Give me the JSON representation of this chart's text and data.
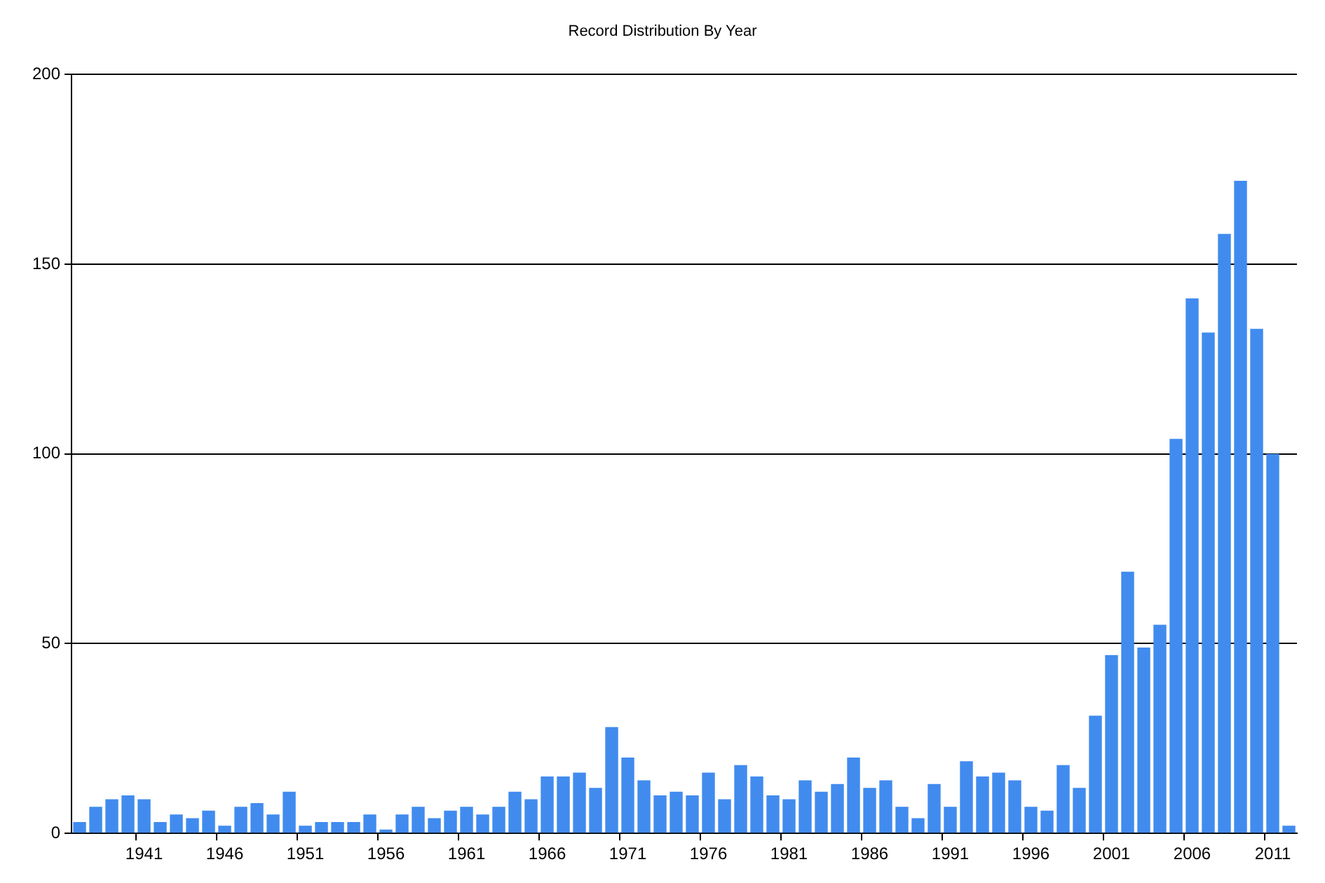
{
  "chart_data": {
    "type": "bar",
    "title": "Record Distribution By Year",
    "categories": [
      null,
      null,
      null,
      null,
      "1941",
      null,
      null,
      null,
      null,
      "1946",
      null,
      null,
      null,
      null,
      "1951",
      null,
      null,
      null,
      null,
      "1956",
      null,
      null,
      null,
      null,
      "1961",
      null,
      null,
      null,
      null,
      "1966",
      null,
      null,
      null,
      null,
      "1971",
      null,
      null,
      null,
      null,
      "1976",
      null,
      null,
      null,
      null,
      "1981",
      null,
      null,
      null,
      null,
      "1986",
      null,
      null,
      null,
      null,
      "1991",
      null,
      null,
      null,
      null,
      "1996",
      null,
      null,
      null,
      null,
      "2001",
      null,
      null,
      null,
      null,
      "2006",
      null,
      null,
      null,
      null,
      "2011",
      null
    ],
    "values": [
      3,
      7,
      9,
      10,
      9,
      3,
      5,
      4,
      6,
      2,
      7,
      8,
      5,
      11,
      2,
      3,
      3,
      3,
      5,
      1,
      5,
      7,
      4,
      6,
      7,
      5,
      7,
      11,
      9,
      15,
      15,
      16,
      12,
      28,
      20,
      14,
      10,
      11,
      10,
      16,
      9,
      18,
      15,
      10,
      9,
      14,
      11,
      13,
      20,
      12,
      14,
      7,
      4,
      13,
      7,
      19,
      15,
      16,
      14,
      7,
      6,
      18,
      12,
      31,
      47,
      69,
      49,
      55,
      104,
      141,
      132,
      158,
      172,
      133,
      100,
      2
    ],
    "color": "#418bef",
    "ylim": [
      0,
      200
    ],
    "yticks": [
      0,
      50,
      100,
      150,
      200
    ],
    "grid": "y"
  }
}
